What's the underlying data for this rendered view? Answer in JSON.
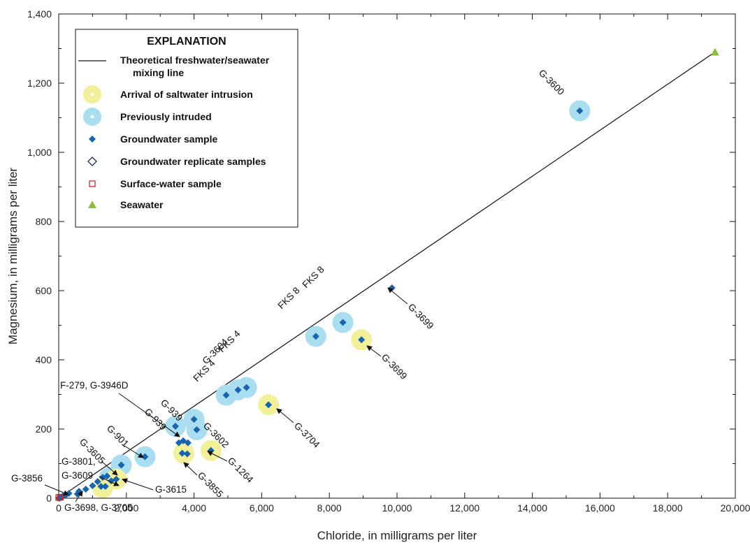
{
  "chart_data": {
    "type": "scatter",
    "xlabel": "Chloride, in milligrams per liter",
    "ylabel": "Magnesium, in milligrams per liter",
    "xlim": [
      0,
      20000
    ],
    "ylim": [
      0,
      1400
    ],
    "xticks": [
      0,
      2000,
      4000,
      6000,
      8000,
      10000,
      12000,
      14000,
      16000,
      18000,
      20000
    ],
    "yticks": [
      0,
      200,
      400,
      600,
      800,
      1000,
      1200,
      1400
    ],
    "xtick_labels": [
      "0",
      "2,000",
      "4,000",
      "6,000",
      "8,000",
      "10,000",
      "12,000",
      "14,000",
      "16,000",
      "18,000",
      "20,000"
    ],
    "ytick_labels": [
      "0",
      "200",
      "400",
      "600",
      "800",
      "1,000",
      "1,200",
      "1,400"
    ],
    "grid": false,
    "legend": {
      "title": "EXPLANATION",
      "placement": "top-left",
      "entries": [
        {
          "key": "mixing",
          "lines": [
            "Theoretical freshwater/seawater",
            "mixing line"
          ]
        },
        {
          "key": "arrival",
          "lines": [
            "Arrival of saltwater intrusion"
          ]
        },
        {
          "key": "previous",
          "lines": [
            "Previously intruded"
          ]
        },
        {
          "key": "groundwater",
          "lines": [
            "Groundwater sample"
          ]
        },
        {
          "key": "replicate",
          "lines": [
            "Groundwater replicate samples"
          ]
        },
        {
          "key": "surface",
          "lines": [
            "Surface-water sample"
          ]
        },
        {
          "key": "seawater",
          "lines": [
            "Seawater"
          ]
        }
      ]
    },
    "colors": {
      "arrival": "#f3f09a",
      "previous": "#a8def0",
      "groundwater": "#1764b0",
      "replicate": "#1b2a6b",
      "surface": "#c62828",
      "seawater": "#8dbf3e",
      "line": "#111111"
    },
    "mixing_line": {
      "x": [
        0,
        19400
      ],
      "y": [
        0,
        1290
      ]
    },
    "series": [
      {
        "name": "Groundwater sample",
        "points": [
          [
            15400,
            1120
          ],
          [
            9850,
            608
          ],
          [
            8400,
            508
          ],
          [
            8950,
            458
          ],
          [
            7600,
            468
          ],
          [
            6200,
            270
          ],
          [
            5550,
            320
          ],
          [
            5300,
            313
          ],
          [
            4950,
            298
          ],
          [
            4500,
            138
          ],
          [
            4000,
            228
          ],
          [
            4080,
            198
          ],
          [
            3450,
            208
          ],
          [
            3550,
            160
          ],
          [
            3680,
            166
          ],
          [
            3820,
            160
          ],
          [
            3650,
            130
          ],
          [
            3800,
            128
          ],
          [
            2550,
            120
          ],
          [
            1850,
            96
          ],
          [
            1700,
            55
          ],
          [
            1550,
            50
          ],
          [
            1300,
            60
          ],
          [
            1430,
            64
          ],
          [
            1150,
            48
          ],
          [
            1250,
            34
          ],
          [
            1380,
            34
          ],
          [
            1000,
            36
          ],
          [
            800,
            26
          ],
          [
            600,
            20
          ],
          [
            550,
            12
          ],
          [
            300,
            14
          ],
          [
            200,
            8
          ],
          [
            120,
            6
          ],
          [
            80,
            3
          ],
          [
            40,
            1
          ],
          [
            20,
            0.5
          ],
          [
            0,
            0
          ]
        ]
      },
      {
        "name": "Arrival of saltwater intrusion",
        "points": [
          [
            8950,
            458
          ],
          [
            6200,
            270
          ],
          [
            4500,
            138
          ],
          [
            3700,
            130
          ],
          [
            1700,
            55
          ],
          [
            1300,
            30
          ]
        ]
      },
      {
        "name": "Previously intruded",
        "points": [
          [
            15400,
            1120
          ],
          [
            8400,
            508
          ],
          [
            7600,
            468
          ],
          [
            5550,
            320
          ],
          [
            5300,
            313
          ],
          [
            4950,
            298
          ],
          [
            4000,
            228
          ],
          [
            4080,
            198
          ],
          [
            3450,
            208
          ],
          [
            2550,
            120
          ],
          [
            1850,
            96
          ],
          [
            1500,
            60
          ]
        ]
      },
      {
        "name": "Surface-water sample",
        "points": [
          [
            0,
            2
          ],
          [
            50,
            3
          ]
        ]
      },
      {
        "name": "Seawater",
        "points": [
          [
            19400,
            1290
          ]
        ]
      }
    ],
    "annotations": [
      {
        "text": "G-3600",
        "angle": 45
      },
      {
        "text": "G-3699",
        "angle": 45
      },
      {
        "text": "FKS 8",
        "angle": -45
      },
      {
        "text": "FKS 8",
        "angle": -45
      },
      {
        "text": "G-3699",
        "angle": 45
      },
      {
        "text": "FKS 4",
        "angle": -45
      },
      {
        "text": "G-3604",
        "angle": -45
      },
      {
        "text": "FKS 4",
        "angle": -45
      },
      {
        "text": "G-3704",
        "angle": 45
      },
      {
        "text": "F-279, G-3946D",
        "angle": 0
      },
      {
        "text": "G-939",
        "angle": 45
      },
      {
        "text": "G-939",
        "angle": 45
      },
      {
        "text": "G-3602",
        "angle": 45
      },
      {
        "text": "G-901",
        "angle": 45
      },
      {
        "text": "G-3605",
        "angle": 45
      },
      {
        "text": "G-3801,",
        "angle": 0
      },
      {
        "text": "G-3609",
        "angle": 0
      },
      {
        "text": "G-1264",
        "angle": 45
      },
      {
        "text": "G-3855",
        "angle": 45
      },
      {
        "text": "G-3615",
        "angle": 0
      },
      {
        "text": "G-3856",
        "angle": 0
      },
      {
        "text": "G-3698, G-3705",
        "angle": 0
      }
    ]
  }
}
